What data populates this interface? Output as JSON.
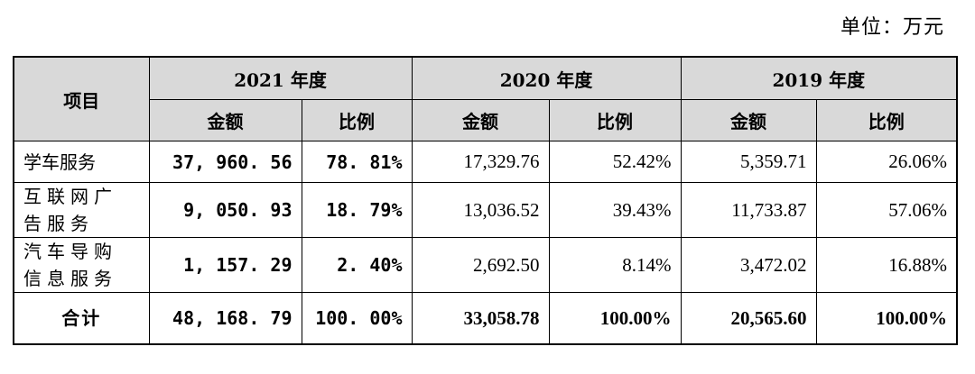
{
  "unit_label": "单位：万元",
  "header": {
    "project": "项目",
    "years": [
      "2021 年度",
      "2020 年度",
      "2019 年度"
    ],
    "amount": "金额",
    "ratio": "比例"
  },
  "rows": [
    {
      "name": "学车服务",
      "v": [
        "37, 960. 56",
        "78. 81%",
        "17,329.76",
        "52.42%",
        "5,359.71",
        "26.06%"
      ]
    },
    {
      "name": "互联网广告服务",
      "name_lines": [
        "互联网广",
        "告服务"
      ],
      "v": [
        "9, 050. 93",
        "18. 79%",
        "13,036.52",
        "39.43%",
        "11,733.87",
        "57.06%"
      ]
    },
    {
      "name": "汽车导购信息服务",
      "name_lines": [
        "汽车导购",
        "信息服务"
      ],
      "v": [
        "1, 157. 29",
        "2. 40%",
        "2,692.50",
        "8.14%",
        "3,472.02",
        "16.88%"
      ]
    }
  ],
  "total": {
    "name": "合计",
    "v": [
      "48, 168. 79",
      "100. 00%",
      "33,058.78",
      "100.00%",
      "20,565.60",
      "100.00%"
    ]
  }
}
